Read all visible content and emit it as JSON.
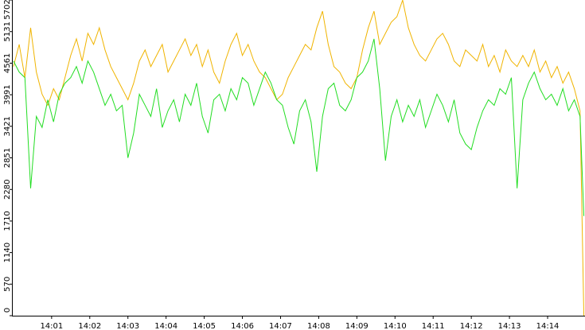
{
  "chart_data": {
    "type": "line",
    "x": [
      0,
      0.15,
      0.3,
      0.45,
      0.6,
      0.75,
      0.9,
      1.05,
      1.2,
      1.35,
      1.5,
      1.65,
      1.8,
      1.95,
      2.1,
      2.25,
      2.4,
      2.55,
      2.7,
      2.85,
      3,
      3.15,
      3.3,
      3.45,
      3.6,
      3.75,
      3.9,
      4.05,
      4.2,
      4.35,
      4.5,
      4.65,
      4.8,
      4.95,
      5.1,
      5.25,
      5.4,
      5.55,
      5.7,
      5.85,
      6,
      6.15,
      6.3,
      6.45,
      6.6,
      6.75,
      6.9,
      7.05,
      7.2,
      7.35,
      7.5,
      7.65,
      7.8,
      7.95,
      8.1,
      8.25,
      8.4,
      8.55,
      8.7,
      8.85,
      9,
      9.15,
      9.3,
      9.45,
      9.6,
      9.75,
      9.9,
      10.05,
      10.2,
      10.35,
      10.5,
      10.65,
      10.8,
      10.95,
      11.1,
      11.25,
      11.4,
      11.55,
      11.7,
      11.85,
      12,
      12.15,
      12.3,
      12.45,
      12.6,
      12.75,
      12.9,
      13.05,
      13.2,
      13.35,
      13.5,
      13.65,
      13.8,
      13.95,
      14.1,
      14.25,
      14.4,
      14.55,
      14.7,
      14.85,
      14.95
    ],
    "series": [
      {
        "color": "#f0b400",
        "values": [
          4500,
          4900,
          4300,
          5200,
          4400,
          4000,
          3800,
          4100,
          3900,
          4300,
          4700,
          5000,
          4600,
          5100,
          4900,
          5200,
          4800,
          4500,
          4300,
          4100,
          3900,
          4200,
          4600,
          4800,
          4500,
          4700,
          4900,
          4400,
          4600,
          4800,
          5000,
          4700,
          4900,
          4500,
          4800,
          4400,
          4200,
          4600,
          4900,
          5100,
          4700,
          4900,
          4600,
          4400,
          4300,
          4100,
          3900,
          4000,
          4300,
          4500,
          4700,
          4900,
          4800,
          5200,
          5500,
          4900,
          4500,
          4400,
          4200,
          4100,
          4300,
          4800,
          5200,
          5500,
          4900,
          5100,
          5300,
          5400,
          5700,
          5200,
          4900,
          4700,
          4600,
          4800,
          5000,
          5100,
          4900,
          4600,
          4500,
          4800,
          4700,
          4600,
          4900,
          4500,
          4700,
          4400,
          4800,
          4600,
          4500,
          4700,
          4500,
          4800,
          4400,
          4600,
          4300,
          4500,
          4200,
          4400,
          4100,
          3700,
          0
        ]
      },
      {
        "color": "#22dd22",
        "values": [
          4600,
          4400,
          4300,
          2300,
          3600,
          3400,
          3900,
          3500,
          4000,
          4200,
          4300,
          4500,
          4200,
          4600,
          4400,
          4100,
          3800,
          4000,
          3700,
          3800,
          2850,
          3300,
          4000,
          3800,
          3600,
          4100,
          3400,
          3700,
          3900,
          3500,
          4000,
          3800,
          4200,
          3600,
          3300,
          3900,
          4000,
          3700,
          4100,
          3900,
          4300,
          4200,
          3800,
          4100,
          4400,
          4200,
          3900,
          3800,
          3400,
          3100,
          3700,
          3900,
          3500,
          2600,
          3600,
          4100,
          4200,
          3800,
          3700,
          3900,
          4300,
          4400,
          4600,
          5000,
          4100,
          2800,
          3600,
          3900,
          3500,
          3800,
          3600,
          3900,
          3400,
          3700,
          4000,
          3800,
          3500,
          3900,
          3300,
          3100,
          3000,
          3400,
          3700,
          3900,
          3800,
          4100,
          4000,
          4300,
          2300,
          3900,
          4200,
          4400,
          4100,
          3900,
          4000,
          3800,
          4100,
          3700,
          3900,
          3600,
          1800
        ]
      }
    ],
    "xlim": [
      -0.04,
      14.98
    ],
    "xticks": [
      {
        "value": 1,
        "label": "14:01"
      },
      {
        "value": 2,
        "label": "14:02"
      },
      {
        "value": 3,
        "label": "14:03"
      },
      {
        "value": 4,
        "label": "14:04"
      },
      {
        "value": 5,
        "label": "14:05"
      },
      {
        "value": 6,
        "label": "14:06"
      },
      {
        "value": 7,
        "label": "14:07"
      },
      {
        "value": 8,
        "label": "14:08"
      },
      {
        "value": 9,
        "label": "14:09"
      },
      {
        "value": 10,
        "label": "14:10"
      },
      {
        "value": 11,
        "label": "14:11"
      },
      {
        "value": 12,
        "label": "14:12"
      },
      {
        "value": 13,
        "label": "14:13"
      },
      {
        "value": 14,
        "label": "14:14"
      }
    ],
    "ylim": [
      0,
      5702
    ],
    "yticks": [
      0,
      570,
      1140,
      1710,
      2280,
      2851,
      3421,
      3991,
      4561,
      5131,
      5702
    ]
  }
}
